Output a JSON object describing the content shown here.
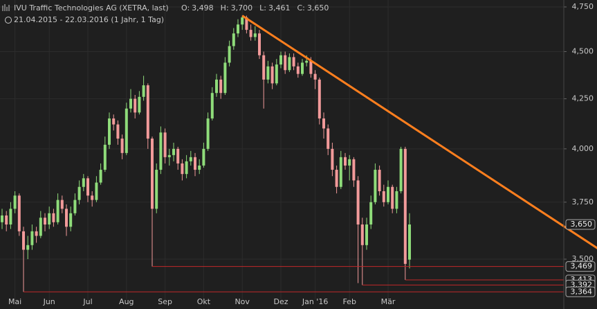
{
  "chart_data": {
    "type": "candlestick",
    "title": "IVU Traffic Technologies AG (XETRA, last)",
    "ohlc_labels": [
      {
        "label": "O:",
        "value": "3,498"
      },
      {
        "label": "H:",
        "value": "3,700"
      },
      {
        "label": "L:",
        "value": "3,461"
      },
      {
        "label": "C:",
        "value": "3,650"
      }
    ],
    "subtitle": "21.04.2015 - 22.03.2016 (1 Jahr, 1 Tag)",
    "categories": [
      null,
      null,
      null,
      "Mai",
      null,
      null,
      null,
      null,
      null,
      null,
      null,
      "Jun",
      null,
      null,
      null,
      null,
      null,
      null,
      null,
      null,
      "Jul",
      null,
      null,
      null,
      null,
      null,
      null,
      null,
      null,
      "Aug",
      null,
      null,
      null,
      null,
      null,
      null,
      null,
      null,
      "Sep",
      null,
      null,
      null,
      null,
      null,
      null,
      null,
      null,
      "Okt",
      null,
      null,
      null,
      null,
      null,
      null,
      null,
      null,
      "Nov",
      null,
      null,
      null,
      null,
      null,
      null,
      null,
      null,
      "Dez",
      null,
      null,
      null,
      null,
      null,
      null,
      null,
      "Jan '16",
      null,
      null,
      null,
      null,
      null,
      null,
      null,
      "Feb",
      null,
      null,
      null,
      null,
      null,
      null,
      null,
      null,
      "Mär",
      null,
      null,
      null,
      null,
      null
    ],
    "candles": [
      [
        3660,
        3720,
        3630,
        3690
      ],
      [
        3690,
        3710,
        3620,
        3650
      ],
      [
        3650,
        3750,
        3630,
        3720
      ],
      [
        3720,
        3800,
        3700,
        3780
      ],
      [
        3780,
        3790,
        3600,
        3620
      ],
      [
        3620,
        3640,
        3364,
        3540
      ],
      [
        3540,
        3600,
        3500,
        3560
      ],
      [
        3560,
        3650,
        3540,
        3620
      ],
      [
        3620,
        3640,
        3570,
        3600
      ],
      [
        3600,
        3710,
        3590,
        3680
      ],
      [
        3680,
        3700,
        3620,
        3650
      ],
      [
        3650,
        3730,
        3630,
        3700
      ],
      [
        3700,
        3720,
        3640,
        3660
      ],
      [
        3660,
        3790,
        3650,
        3760
      ],
      [
        3760,
        3780,
        3700,
        3720
      ],
      [
        3720,
        3740,
        3600,
        3640
      ],
      [
        3640,
        3730,
        3620,
        3700
      ],
      [
        3700,
        3790,
        3690,
        3760
      ],
      [
        3760,
        3850,
        3740,
        3820
      ],
      [
        3820,
        3880,
        3800,
        3860
      ],
      [
        3860,
        3870,
        3750,
        3780
      ],
      [
        3780,
        3800,
        3730,
        3760
      ],
      [
        3760,
        3870,
        3750,
        3840
      ],
      [
        3840,
        3930,
        3830,
        3900
      ],
      [
        3900,
        4060,
        3890,
        4020
      ],
      [
        4020,
        4180,
        4000,
        4150
      ],
      [
        4150,
        4170,
        4090,
        4120
      ],
      [
        4120,
        4140,
        4020,
        4050
      ],
      [
        4050,
        4070,
        3950,
        3980
      ],
      [
        3980,
        4230,
        3970,
        4200
      ],
      [
        4200,
        4300,
        4180,
        4250
      ],
      [
        4250,
        4270,
        4150,
        4180
      ],
      [
        4180,
        4290,
        4170,
        4260
      ],
      [
        4260,
        4370,
        4240,
        4320
      ],
      [
        4320,
        4330,
        4000,
        4050
      ],
      [
        4050,
        4060,
        3469,
        3720
      ],
      [
        3720,
        3930,
        3700,
        3900
      ],
      [
        3900,
        4110,
        3880,
        4080
      ],
      [
        4080,
        4100,
        3930,
        3960
      ],
      [
        3960,
        4000,
        3920,
        3970
      ],
      [
        3970,
        4030,
        3940,
        4000
      ],
      [
        4000,
        4010,
        3900,
        3930
      ],
      [
        3930,
        3950,
        3850,
        3880
      ],
      [
        3880,
        3970,
        3860,
        3940
      ],
      [
        3940,
        3990,
        3920,
        3960
      ],
      [
        3960,
        3980,
        3870,
        3900
      ],
      [
        3900,
        3950,
        3880,
        3920
      ],
      [
        3920,
        4030,
        3910,
        4000
      ],
      [
        4000,
        4180,
        3990,
        4150
      ],
      [
        4150,
        4310,
        4140,
        4280
      ],
      [
        4280,
        4380,
        4260,
        4350
      ],
      [
        4350,
        4370,
        4250,
        4280
      ],
      [
        4280,
        4470,
        4270,
        4440
      ],
      [
        4440,
        4560,
        4420,
        4530
      ],
      [
        4530,
        4630,
        4510,
        4600
      ],
      [
        4600,
        4680,
        4580,
        4650
      ],
      [
        4650,
        4700,
        4620,
        4690
      ],
      [
        4690,
        4700,
        4600,
        4620
      ],
      [
        4620,
        4650,
        4560,
        4580
      ],
      [
        4580,
        4640,
        4560,
        4600
      ],
      [
        4600,
        4620,
        4460,
        4480
      ],
      [
        4480,
        4500,
        4200,
        4350
      ],
      [
        4350,
        4450,
        4330,
        4420
      ],
      [
        4420,
        4440,
        4300,
        4330
      ],
      [
        4330,
        4460,
        4320,
        4430
      ],
      [
        4430,
        4500,
        4410,
        4480
      ],
      [
        4480,
        4500,
        4380,
        4400
      ],
      [
        4400,
        4490,
        4390,
        4470
      ],
      [
        4470,
        4490,
        4400,
        4420
      ],
      [
        4420,
        4440,
        4360,
        4380
      ],
      [
        4380,
        4460,
        4370,
        4440
      ],
      [
        4440,
        4480,
        4420,
        4450
      ],
      [
        4450,
        4470,
        4360,
        4380
      ],
      [
        4380,
        4400,
        4300,
        4350
      ],
      [
        4350,
        4360,
        4120,
        4150
      ],
      [
        4150,
        4180,
        4050,
        4100
      ],
      [
        4100,
        4120,
        3970,
        4000
      ],
      [
        4000,
        4030,
        3870,
        3900
      ],
      [
        3900,
        3920,
        3790,
        3820
      ],
      [
        3820,
        3990,
        3810,
        3960
      ],
      [
        3960,
        3980,
        3900,
        3920
      ],
      [
        3920,
        3970,
        3850,
        3950
      ],
      [
        3950,
        3960,
        3820,
        3850
      ],
      [
        3850,
        3870,
        3400,
        3650
      ],
      [
        3650,
        3680,
        3392,
        3560
      ],
      [
        3560,
        3680,
        3540,
        3650
      ],
      [
        3650,
        3780,
        3630,
        3750
      ],
      [
        3750,
        3930,
        3740,
        3900
      ],
      [
        3900,
        3920,
        3780,
        3800
      ],
      [
        3800,
        3830,
        3730,
        3750
      ],
      [
        3750,
        3850,
        3740,
        3820
      ],
      [
        3820,
        3830,
        3700,
        3720
      ],
      [
        3720,
        3820,
        3700,
        3800
      ],
      [
        3800,
        4010,
        3790,
        4000
      ],
      [
        4000,
        4010,
        3413,
        3480
      ],
      [
        3498,
        3700,
        3461,
        3650
      ]
    ],
    "up_color": "#8fdc7a",
    "down_color": "#f29a9a",
    "ylim": [
      3295,
      4790
    ],
    "log_scale": true,
    "grid": true,
    "yticks": [
      {
        "value": 4750,
        "label": "4,750"
      },
      {
        "value": 4500,
        "label": "4,500"
      },
      {
        "value": 4250,
        "label": "4,250"
      },
      {
        "value": 4000,
        "label": "4,000"
      },
      {
        "value": 3750,
        "label": "3,750"
      },
      {
        "value": 3500,
        "label": "3,500"
      }
    ],
    "trendline": {
      "x": [
        56,
        139
      ],
      "y": [
        4700,
        3544
      ],
      "color": "#ff7f1e"
    },
    "levels": [
      {
        "value": 3469,
        "label": "3,469",
        "from": 35
      },
      {
        "value": 3413,
        "label": "3,413",
        "from": 94
      },
      {
        "value": 3392,
        "label": "3,392",
        "from": 84
      },
      {
        "value": 3364,
        "label": "3,364",
        "from": 5
      }
    ],
    "level_color": "#c0282a",
    "last_price": {
      "value": 3650,
      "label": "3,650"
    }
  }
}
